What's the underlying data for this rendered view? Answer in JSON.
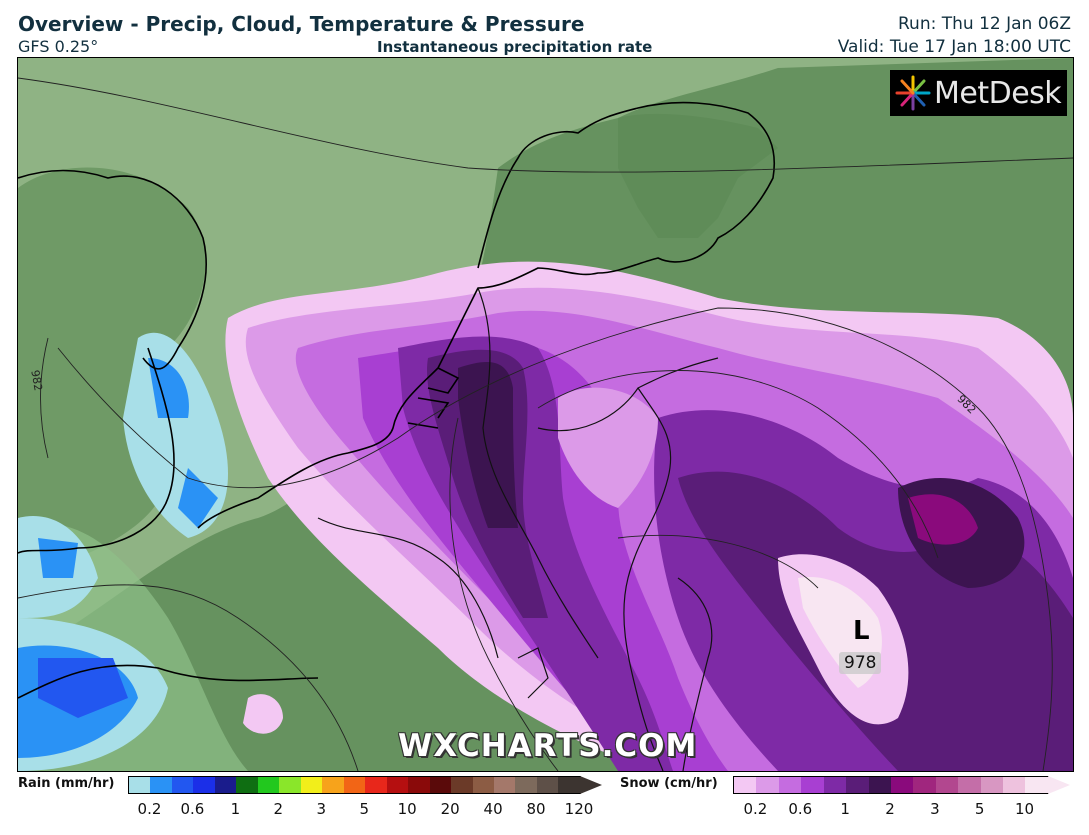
{
  "header": {
    "title": "Overview - Precip, Cloud, Temperature & Pressure",
    "model": "GFS 0.25°",
    "subtitle": "Instantaneous precipitation rate",
    "run": "Run: Thu 12 Jan 06Z",
    "valid": "Valid: Tue 17 Jan 18:00 UTC"
  },
  "logo": {
    "text": "MetDesk",
    "icon": "metdesk-starburst-icon"
  },
  "watermark": "WXCHARTS.COM",
  "map": {
    "low_pressure": {
      "symbol": "L",
      "value": "978"
    },
    "isobar_labels": [
      "982",
      "982"
    ]
  },
  "legend": {
    "rain": {
      "title": "Rain (mm/hr)",
      "colors": [
        "#a8dfe8",
        "#2a92f5",
        "#2257f0",
        "#1b2fe8",
        "#1a1c8c",
        "#0f6e12",
        "#22c81e",
        "#8ae62a",
        "#f2ee1a",
        "#f7a31b",
        "#f26516",
        "#e8271b",
        "#b50f10",
        "#8a0a0a",
        "#5a0a0a",
        "#6b3a28",
        "#8c5c44",
        "#a4786a",
        "#7d6a5c",
        "#5e5048",
        "#3c3430"
      ],
      "ticks": [
        "0.2",
        "0.6",
        "1",
        "2",
        "3",
        "5",
        "10",
        "20",
        "40",
        "80",
        "120"
      ]
    },
    "snow": {
      "title": "Snow (cm/hr)",
      "colors": [
        "#f3c8f3",
        "#dc9ae8",
        "#c56ce0",
        "#a83fd2",
        "#7e2aa6",
        "#5a1d78",
        "#3c1450",
        "#8a0a7c",
        "#a0267e",
        "#b2478f",
        "#c46ea8",
        "#d897c2",
        "#eec2de",
        "#f8e6f2"
      ],
      "ticks": [
        "0.2",
        "0.6",
        "1",
        "2",
        "3",
        "5",
        "10"
      ]
    }
  }
}
